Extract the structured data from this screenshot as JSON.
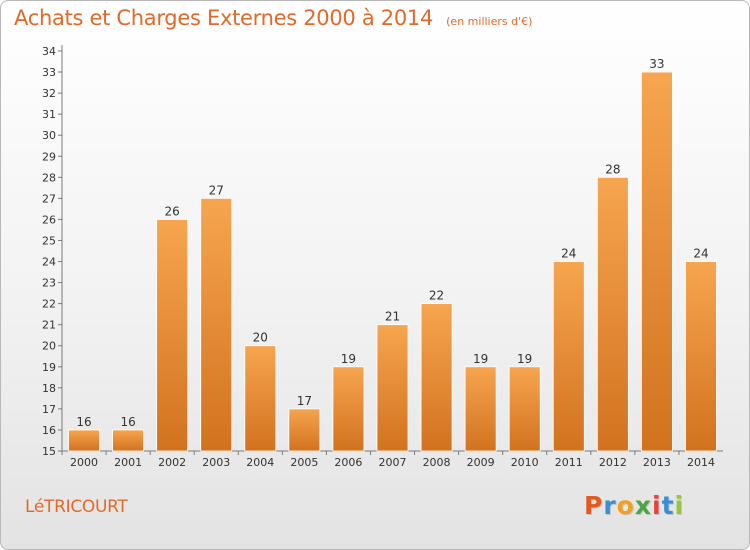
{
  "header": {
    "title": "Achats et Charges Externes 2000 à 2014",
    "subtitle": "(en milliers d'€)"
  },
  "footer": {
    "commune": "LéTRICOURT",
    "logo": "Proxiti"
  },
  "colors": {
    "accent": "#e16a2a",
    "bar_top": "#f7a54f",
    "bar_bottom": "#d2721f",
    "logo_letters": [
      "#e45a1d",
      "#3a8fd4",
      "#f0a020",
      "#47a843",
      "#e9403a",
      "#3a8fd4",
      "#9bc53d"
    ]
  },
  "chart_data": {
    "type": "bar",
    "categories": [
      "2000",
      "2001",
      "2002",
      "2003",
      "2004",
      "2005",
      "2006",
      "2007",
      "2008",
      "2009",
      "2010",
      "2011",
      "2012",
      "2013",
      "2014"
    ],
    "values": [
      16,
      16,
      26,
      27,
      20,
      17,
      19,
      21,
      22,
      19,
      19,
      24,
      28,
      33,
      24
    ],
    "title": "Achats et Charges Externes 2000 à 2014",
    "xlabel": "",
    "ylabel": "",
    "ylim": [
      15,
      34
    ],
    "yticks": [
      15,
      16,
      17,
      18,
      19,
      20,
      21,
      22,
      23,
      24,
      25,
      26,
      27,
      28,
      29,
      30,
      31,
      32,
      33,
      34
    ],
    "grid": false,
    "data_labels": true
  }
}
